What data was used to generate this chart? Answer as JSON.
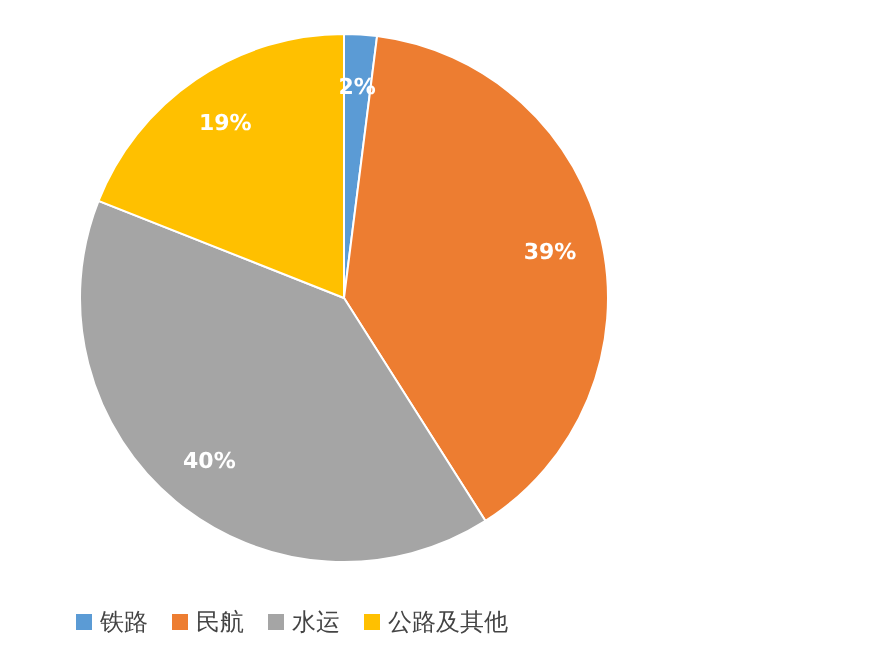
{
  "chart_data": {
    "type": "pie",
    "categories": [
      "铁路",
      "民航",
      "水运",
      "公路及其他"
    ],
    "values": [
      2,
      39,
      40,
      19
    ],
    "colors": [
      "#5b9bd5",
      "#ed7d31",
      "#a5a5a5",
      "#ffc000"
    ],
    "value_labels": [
      "2%",
      "39%",
      "40%",
      "19%"
    ],
    "legend": "bottom"
  }
}
